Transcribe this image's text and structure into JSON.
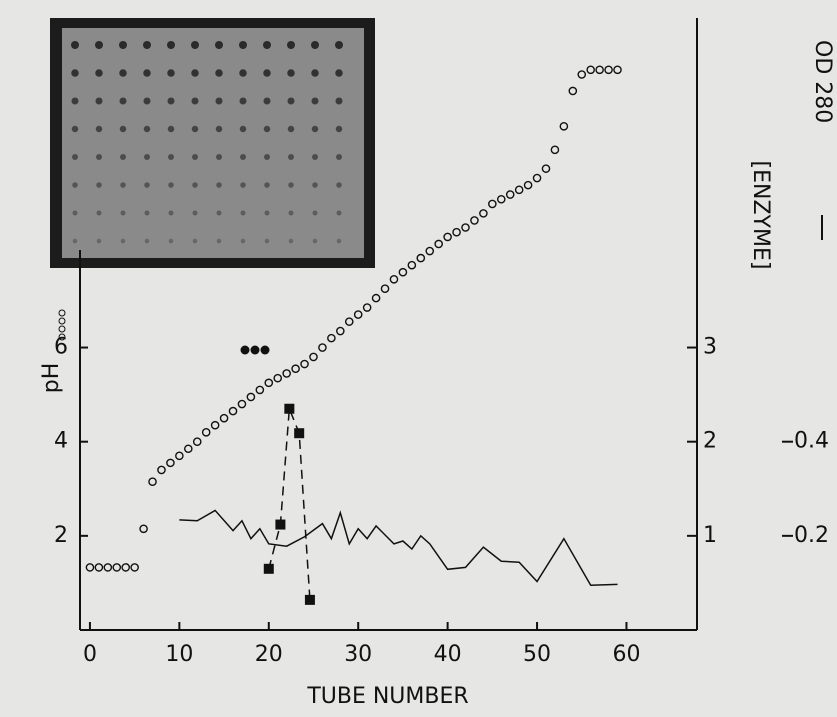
{
  "chart_data": {
    "type": "line",
    "xlabel": "TUBE NUMBER",
    "ylabel": "pH",
    "y2label": "[ENZYME]",
    "y3label": "OD 280",
    "xlim": [
      -1,
      68
    ],
    "xticks": [
      0,
      10,
      20,
      30,
      40,
      50,
      60
    ],
    "ylim": [
      0,
      13
    ],
    "yticks": [
      2,
      4,
      6
    ],
    "y2lim": [
      0,
      6.5
    ],
    "y2ticks": [
      1,
      2,
      3
    ],
    "y3lim": [
      0,
      1.3
    ],
    "y3ticks": [
      0.2,
      0.4
    ],
    "series": [
      {
        "marker": "open-circle",
        "color": "#111111",
        "x": [
          0,
          1,
          2,
          3,
          4,
          5,
          6,
          7,
          8,
          9,
          10,
          11,
          12,
          13,
          14,
          15,
          16,
          17,
          18,
          19,
          20,
          21,
          22,
          23,
          24,
          25,
          26,
          27,
          28,
          29,
          30,
          31,
          32,
          33,
          34,
          35,
          36,
          37,
          38,
          39,
          40,
          41,
          42,
          43,
          44,
          45,
          46,
          47,
          48,
          49,
          50,
          51,
          52,
          53,
          54,
          55,
          56,
          57,
          58,
          59
        ],
        "values": [
          1.33,
          1.33,
          1.33,
          1.33,
          1.33,
          1.33,
          2.15,
          3.15,
          3.4,
          3.55,
          3.7,
          3.85,
          4.0,
          4.2,
          4.35,
          4.5,
          4.65,
          4.8,
          4.95,
          5.1,
          5.25,
          5.35,
          5.45,
          5.55,
          5.65,
          5.8,
          6.0,
          6.2,
          6.35,
          6.55,
          6.7,
          6.85,
          7.05,
          7.25,
          7.45,
          7.6,
          7.75,
          7.9,
          8.05,
          8.2,
          8.35,
          8.45,
          8.55,
          8.7,
          8.85,
          9.05,
          9.15,
          9.25,
          9.35,
          9.45,
          9.6,
          9.8,
          10.2,
          10.7,
          11.45,
          11.8,
          11.9,
          11.9,
          11.9,
          11.9
        ]
      },
      {
        "marker": "square",
        "dashed": true,
        "axis": "y2",
        "color": "#111111",
        "x": [
          20,
          21.3,
          22.3,
          23.4,
          24.6
        ],
        "values": [
          0.65,
          1.12,
          2.35,
          2.09,
          0.32
        ]
      },
      {
        "marker": "none",
        "axis": "y3",
        "color": "#111111",
        "x": [
          10,
          12,
          14,
          16,
          17,
          18,
          19,
          20,
          22,
          24,
          26,
          27,
          28,
          29,
          30,
          31,
          32,
          34,
          35,
          36,
          37,
          38,
          40,
          42,
          44,
          46,
          48,
          50,
          53,
          56,
          59
        ],
        "values": [
          0.234,
          0.232,
          0.254,
          0.211,
          0.232,
          0.194,
          0.215,
          0.183,
          0.178,
          0.198,
          0.226,
          0.194,
          0.249,
          0.183,
          0.215,
          0.194,
          0.221,
          0.183,
          0.189,
          0.172,
          0.2,
          0.183,
          0.129,
          0.133,
          0.176,
          0.146,
          0.144,
          0.103,
          0.194,
          0.095,
          0.097
        ]
      }
    ]
  }
}
